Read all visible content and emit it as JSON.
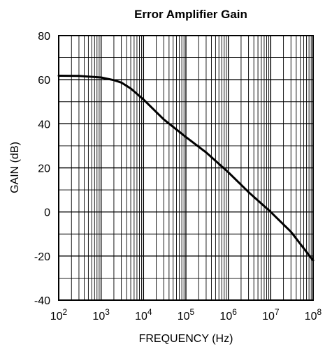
{
  "chart_data": {
    "type": "line",
    "title": "Error Amplifier Gain",
    "xlabel": "FREQUENCY (Hz)",
    "ylabel": "GAIN (dB)",
    "x_scale": "log",
    "xlim": [
      100,
      100000000
    ],
    "ylim": [
      -40,
      80
    ],
    "grid": true,
    "x_ticks": [
      {
        "value": 100,
        "base": "10",
        "exp": "2"
      },
      {
        "value": 1000,
        "base": "10",
        "exp": "3"
      },
      {
        "value": 10000,
        "base": "10",
        "exp": "4"
      },
      {
        "value": 100000,
        "base": "10",
        "exp": "5"
      },
      {
        "value": 1000000,
        "base": "10",
        "exp": "6"
      },
      {
        "value": 10000000,
        "base": "10",
        "exp": "7"
      },
      {
        "value": 100000000,
        "base": "10",
        "exp": "8"
      }
    ],
    "y_ticks": [
      "-40",
      "-20",
      "0",
      "20",
      "40",
      "60",
      "80"
    ],
    "series": [
      {
        "color": "#000000",
        "x": [
          100,
          300,
          1000,
          2000,
          3000,
          5000,
          10000,
          30000,
          100000,
          300000,
          1000000,
          3000000,
          10000000,
          30000000,
          100000000
        ],
        "y": [
          61.8,
          61.7,
          61,
          59.8,
          58.7,
          56,
          51,
          42,
          34,
          27,
          18,
          9,
          0,
          -9,
          -22
        ]
      }
    ]
  }
}
